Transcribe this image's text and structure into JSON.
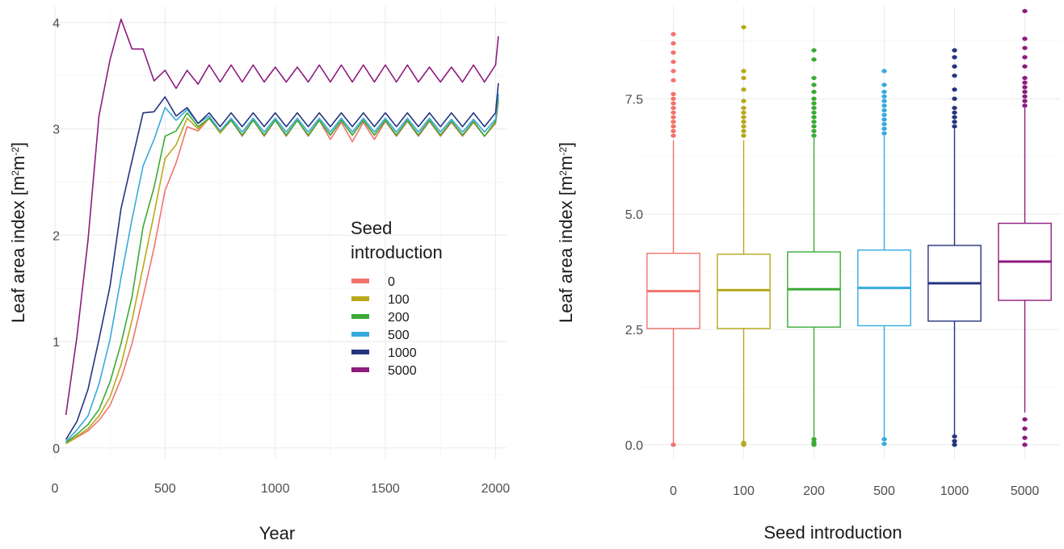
{
  "chart_data": [
    {
      "type": "line",
      "title": "",
      "xlabel": "Year",
      "ylabel": "Leaf area index [m²m⁻²]",
      "ylabel_parts": {
        "pre": "Leaf area index [m",
        "sup1": "2",
        "mid": "m",
        "sup2": "-2",
        "post": "]"
      },
      "xlim": [
        0,
        2050
      ],
      "ylim": [
        -0.1,
        4.15
      ],
      "x_ticks": [
        0,
        500,
        1000,
        1500,
        2000
      ],
      "y_ticks": [
        0,
        1,
        2,
        3,
        4
      ],
      "grid": true,
      "legend": {
        "title_lines": [
          "Seed",
          "introduction"
        ],
        "placement": "center-right",
        "entries": [
          "0",
          "100",
          "200",
          "500",
          "1000",
          "5000"
        ]
      },
      "x": [
        50,
        100,
        150,
        200,
        250,
        300,
        350,
        400,
        450,
        500,
        550,
        600,
        650,
        700,
        750,
        800,
        850,
        900,
        950,
        1000,
        1050,
        1100,
        1150,
        1200,
        1250,
        1300,
        1350,
        1400,
        1450,
        1500,
        1550,
        1600,
        1650,
        1700,
        1750,
        1800,
        1850,
        1900,
        1950,
        2000,
        2013
      ],
      "series": [
        {
          "name": "0",
          "color": "#F0736B",
          "values": [
            0.04,
            0.1,
            0.16,
            0.26,
            0.4,
            0.65,
            0.98,
            1.42,
            1.88,
            2.42,
            2.68,
            3.02,
            2.98,
            3.1,
            2.96,
            3.08,
            2.93,
            3.08,
            2.93,
            3.08,
            2.93,
            3.08,
            2.93,
            3.08,
            2.9,
            3.06,
            2.88,
            3.06,
            2.9,
            3.07,
            2.93,
            3.07,
            2.93,
            3.07,
            2.93,
            3.06,
            2.93,
            3.06,
            2.93,
            3.05,
            3.25
          ]
        },
        {
          "name": "100",
          "color": "#B8A81B",
          "values": [
            0.04,
            0.11,
            0.18,
            0.3,
            0.48,
            0.78,
            1.2,
            1.7,
            2.2,
            2.72,
            2.85,
            3.1,
            3.0,
            3.1,
            2.96,
            3.08,
            2.94,
            3.08,
            2.94,
            3.08,
            2.94,
            3.08,
            2.94,
            3.08,
            2.94,
            3.08,
            2.94,
            3.08,
            2.94,
            3.08,
            2.94,
            3.08,
            2.94,
            3.08,
            2.94,
            3.07,
            2.94,
            3.07,
            2.93,
            3.06,
            3.28
          ]
        },
        {
          "name": "200",
          "color": "#3AAA35",
          "values": [
            0.05,
            0.13,
            0.22,
            0.36,
            0.62,
            0.98,
            1.42,
            2.08,
            2.45,
            2.93,
            2.98,
            3.15,
            3.02,
            3.1,
            2.98,
            3.08,
            2.94,
            3.08,
            2.94,
            3.08,
            2.94,
            3.08,
            2.94,
            3.08,
            2.94,
            3.08,
            2.94,
            3.08,
            2.94,
            3.08,
            2.94,
            3.08,
            2.94,
            3.08,
            2.94,
            3.07,
            2.94,
            3.07,
            2.93,
            3.07,
            3.3
          ]
        },
        {
          "name": "500",
          "color": "#36AADC",
          "values": [
            0.06,
            0.17,
            0.3,
            0.6,
            1.02,
            1.6,
            2.15,
            2.65,
            2.9,
            3.2,
            3.08,
            3.18,
            3.05,
            3.12,
            2.98,
            3.1,
            2.97,
            3.1,
            2.97,
            3.1,
            2.97,
            3.1,
            2.97,
            3.1,
            2.97,
            3.1,
            2.97,
            3.1,
            2.97,
            3.1,
            2.97,
            3.1,
            2.97,
            3.1,
            2.97,
            3.09,
            2.97,
            3.09,
            2.97,
            3.09,
            3.33
          ]
        },
        {
          "name": "1000",
          "color": "#26347F",
          "values": [
            0.08,
            0.25,
            0.55,
            1.02,
            1.52,
            2.25,
            2.7,
            3.15,
            3.16,
            3.3,
            3.12,
            3.2,
            3.05,
            3.15,
            3.02,
            3.15,
            3.02,
            3.15,
            3.02,
            3.15,
            3.02,
            3.15,
            3.02,
            3.15,
            3.02,
            3.15,
            3.02,
            3.15,
            3.02,
            3.15,
            3.02,
            3.15,
            3.02,
            3.15,
            3.02,
            3.15,
            3.02,
            3.15,
            3.02,
            3.15,
            3.43
          ]
        },
        {
          "name": "5000",
          "color": "#8E1B7E",
          "values": [
            0.31,
            1.05,
            1.95,
            3.12,
            3.65,
            4.03,
            3.75,
            3.75,
            3.45,
            3.55,
            3.38,
            3.55,
            3.42,
            3.6,
            3.44,
            3.6,
            3.44,
            3.6,
            3.44,
            3.58,
            3.44,
            3.58,
            3.44,
            3.6,
            3.44,
            3.6,
            3.44,
            3.6,
            3.44,
            3.6,
            3.44,
            3.6,
            3.44,
            3.58,
            3.44,
            3.58,
            3.44,
            3.6,
            3.44,
            3.6,
            3.87
          ]
        }
      ]
    },
    {
      "type": "box",
      "title": "",
      "xlabel": "Seed introduction",
      "ylabel": "Leaf area index [m²m⁻²]",
      "ylabel_parts": {
        "pre": "Leaf area index [m",
        "sup1": "2",
        "mid": "m",
        "sup2": "-2",
        "post": "]"
      },
      "ylim": [
        -0.3,
        9.5
      ],
      "y_ticks": [
        0.0,
        2.5,
        5.0,
        7.5
      ],
      "y_tick_labels": [
        "0.0",
        "2.5",
        "5.0",
        "7.5"
      ],
      "grid": true,
      "categories": [
        "0",
        "100",
        "200",
        "500",
        "1000",
        "5000"
      ],
      "boxes": [
        {
          "name": "0",
          "color": "#F0736B",
          "q1": 2.52,
          "median": 3.33,
          "q3": 4.15,
          "whisker_low": 0.0,
          "whisker_high": 6.6,
          "outliers": [
            0.0,
            6.7,
            6.8,
            6.9,
            7.0,
            7.1,
            7.2,
            7.3,
            7.4,
            7.5,
            7.6,
            7.9,
            8.1,
            8.3,
            8.5,
            8.7,
            8.9
          ]
        },
        {
          "name": "100",
          "color": "#B8A81B",
          "q1": 2.52,
          "median": 3.35,
          "q3": 4.13,
          "whisker_low": 0.0,
          "whisker_high": 6.6,
          "outliers": [
            0.0,
            0.04,
            6.7,
            6.8,
            6.9,
            7.0,
            7.1,
            7.2,
            7.3,
            7.45,
            7.7,
            7.95,
            8.1,
            9.05
          ]
        },
        {
          "name": "200",
          "color": "#3AAA35",
          "q1": 2.55,
          "median": 3.37,
          "q3": 4.18,
          "whisker_low": 0.0,
          "whisker_high": 6.65,
          "outliers": [
            0.0,
            0.05,
            0.12,
            6.7,
            6.8,
            6.9,
            7.0,
            7.1,
            7.2,
            7.3,
            7.4,
            7.5,
            7.65,
            7.8,
            7.95,
            8.35,
            8.55
          ]
        },
        {
          "name": "500",
          "color": "#36AADC",
          "q1": 2.58,
          "median": 3.4,
          "q3": 4.22,
          "whisker_low": 0.1,
          "whisker_high": 6.7,
          "outliers": [
            0.02,
            0.12,
            6.75,
            6.85,
            6.95,
            7.05,
            7.15,
            7.25,
            7.35,
            7.45,
            7.55,
            7.65,
            7.8,
            8.1
          ]
        },
        {
          "name": "1000",
          "color": "#26347F",
          "q1": 2.68,
          "median": 3.5,
          "q3": 4.32,
          "whisker_low": 0.15,
          "whisker_high": 6.85,
          "outliers": [
            0.0,
            0.08,
            0.18,
            6.9,
            7.0,
            7.1,
            7.2,
            7.3,
            7.5,
            7.7,
            8.0,
            8.2,
            8.4,
            8.55
          ]
        },
        {
          "name": "5000",
          "color": "#8E1B7E",
          "q1": 3.13,
          "median": 3.97,
          "q3": 4.8,
          "whisker_low": 0.7,
          "whisker_high": 7.3,
          "outliers": [
            0.0,
            0.15,
            0.35,
            0.55,
            7.35,
            7.45,
            7.55,
            7.65,
            7.75,
            7.85,
            7.95,
            8.2,
            8.4,
            8.6,
            8.8,
            9.4
          ]
        }
      ]
    }
  ]
}
